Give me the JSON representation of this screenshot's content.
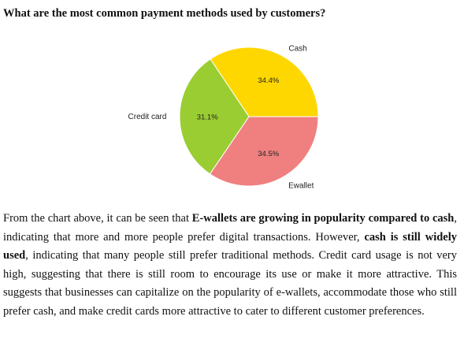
{
  "heading": "What are the most common payment methods used by customers?",
  "chart_data": {
    "type": "pie",
    "slices": [
      {
        "label": "Cash",
        "value": 34.4,
        "pct_label": "34.4%",
        "color": "#FFD700"
      },
      {
        "label": "Ewallet",
        "value": 34.5,
        "pct_label": "34.5%",
        "color": "#F08080"
      },
      {
        "label": "Credit card",
        "value": 31.1,
        "pct_label": "31.1%",
        "color": "#9ACD32"
      }
    ],
    "start_angle": 0,
    "direction": "clockwise"
  },
  "paragraph": {
    "p1": "From the chart above, it can be seen that ",
    "b1": "E-wallets are growing in popularity compared to cash",
    "p2": ", indicating that more and more people prefer digital transactions. However, ",
    "b2": "cash is still widely used",
    "p3": ", indicating that many people still prefer traditional methods. Credit card usage is not very high, suggesting that there is still room to encourage its use or make it more attractive. This suggests that businesses can capitalize on the popularity of e-wallets, accommodate those who still prefer cash, and make credit cards more attractive to cater to different customer preferences."
  }
}
